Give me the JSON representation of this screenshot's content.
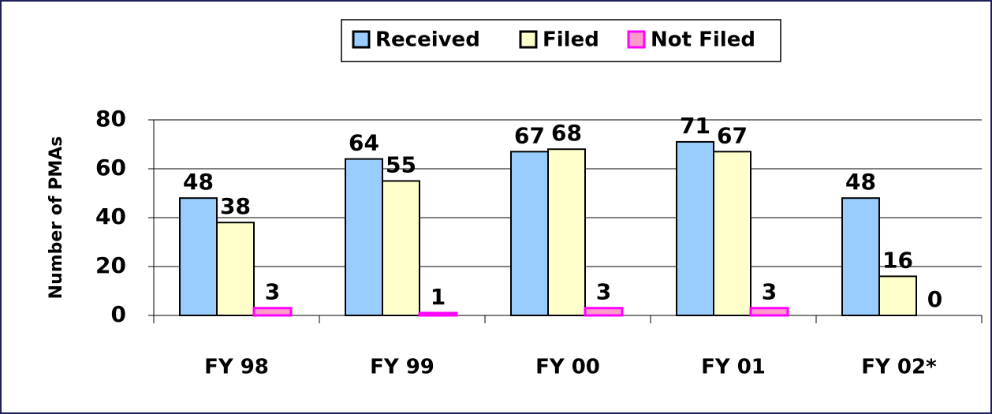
{
  "chart_data": {
    "type": "bar",
    "categories": [
      "FY 98",
      "FY 99",
      "FY 00",
      "FY 01",
      "FY 02*"
    ],
    "series": [
      {
        "name": "Received",
        "color": "#99ccff",
        "values": [
          48,
          64,
          67,
          71,
          48
        ]
      },
      {
        "name": "Filed",
        "color": "#ffffcc",
        "values": [
          38,
          55,
          68,
          67,
          16
        ]
      },
      {
        "name": "Not Filed",
        "color": "#ff99cc",
        "values": [
          3,
          1,
          3,
          3,
          0
        ]
      }
    ],
    "y_label": "Number of PMAs",
    "ylim": [
      0,
      80
    ],
    "yticks": [
      0,
      20,
      40,
      60,
      80
    ],
    "grid": true,
    "legend": "top"
  }
}
